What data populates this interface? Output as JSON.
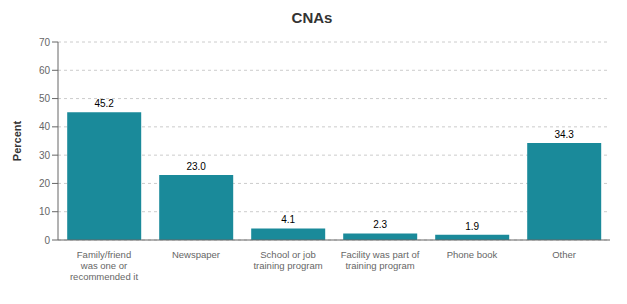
{
  "chart_data": {
    "type": "bar",
    "title": "CNAs",
    "categories": [
      "Family/friend\nwas one or\nrecommended it",
      "Newspaper",
      "School or job\ntraining program",
      "Facility was part of\ntraining program",
      "Phone book",
      "Other"
    ],
    "values": [
      45.2,
      23.0,
      4.1,
      2.3,
      1.9,
      34.3
    ],
    "value_labels": [
      "45.2",
      "23.0",
      "4.1",
      "2.3",
      "1.9",
      "34.3"
    ],
    "color": "#1a8a9a",
    "ylabel": "Percent",
    "ylim": [
      0,
      70
    ],
    "yticks": [
      0,
      10,
      20,
      30,
      40,
      50,
      60,
      70
    ],
    "grid": true,
    "data_labels": true
  }
}
